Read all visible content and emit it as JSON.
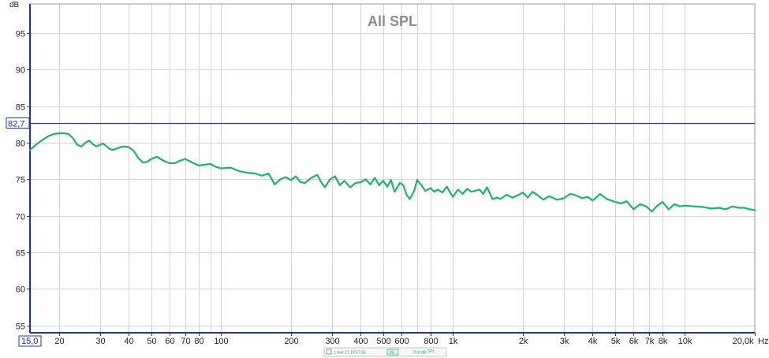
{
  "chart_data": {
    "type": "line",
    "title": "All SPL",
    "ylabel": "dB",
    "x_unit": "Hz",
    "x_scale": "log",
    "xlim": [
      15.0,
      20000
    ],
    "ylim": [
      54,
      99
    ],
    "grid": true,
    "yticks": [
      {
        "value": 55,
        "label": "55"
      },
      {
        "value": 60,
        "label": "60"
      },
      {
        "value": 65,
        "label": "65"
      },
      {
        "value": 70,
        "label": "70"
      },
      {
        "value": 75,
        "label": "75"
      },
      {
        "value": 80,
        "label": "80"
      },
      {
        "value": 85,
        "label": "85"
      },
      {
        "value": 90,
        "label": "90"
      },
      {
        "value": 95,
        "label": "95"
      }
    ],
    "xticks": [
      {
        "value": 20,
        "label": "20"
      },
      {
        "value": 30,
        "label": "30"
      },
      {
        "value": 40,
        "label": "40"
      },
      {
        "value": 50,
        "label": "50"
      },
      {
        "value": 60,
        "label": "60"
      },
      {
        "value": 70,
        "label": "70"
      },
      {
        "value": 80,
        "label": "80"
      },
      {
        "value": 100,
        "label": "100"
      },
      {
        "value": 200,
        "label": "200"
      },
      {
        "value": 300,
        "label": "300"
      },
      {
        "value": 400,
        "label": "400"
      },
      {
        "value": 500,
        "label": "500"
      },
      {
        "value": 600,
        "label": "600"
      },
      {
        "value": 800,
        "label": "800"
      },
      {
        "value": 1000,
        "label": "1k"
      },
      {
        "value": 2000,
        "label": "2k"
      },
      {
        "value": 3000,
        "label": "3k"
      },
      {
        "value": 4000,
        "label": "4k"
      },
      {
        "value": 5000,
        "label": "5k"
      },
      {
        "value": 6000,
        "label": "6k"
      },
      {
        "value": 7000,
        "label": "7k"
      },
      {
        "value": 8000,
        "label": "8k"
      },
      {
        "value": 10000,
        "label": "10k"
      },
      {
        "value": 20000,
        "label": "20,0k"
      }
    ],
    "x_minor_grid": [
      90,
      700
    ],
    "x_start_label": "15,0",
    "cursor": {
      "value": 82.7,
      "label": "82,7"
    },
    "series": [
      {
        "color": "#1fb36a",
        "points": [
          [
            15,
            79.0
          ],
          [
            16,
            79.8
          ],
          [
            17,
            80.4
          ],
          [
            18,
            80.9
          ],
          [
            19,
            81.2
          ],
          [
            20,
            81.3
          ],
          [
            21,
            81.3
          ],
          [
            22,
            81.2
          ],
          [
            23,
            80.6
          ],
          [
            24,
            79.7
          ],
          [
            25,
            79.5
          ],
          [
            26,
            80.0
          ],
          [
            27,
            80.3
          ],
          [
            28,
            79.8
          ],
          [
            29,
            79.5
          ],
          [
            31,
            79.9
          ],
          [
            33,
            79.2
          ],
          [
            34,
            79.0
          ],
          [
            36,
            79.3
          ],
          [
            38,
            79.5
          ],
          [
            40,
            79.4
          ],
          [
            42,
            78.9
          ],
          [
            44,
            77.9
          ],
          [
            46,
            77.3
          ],
          [
            48,
            77.4
          ],
          [
            50,
            77.8
          ],
          [
            53,
            78.1
          ],
          [
            56,
            77.6
          ],
          [
            60,
            77.2
          ],
          [
            63,
            77.2
          ],
          [
            66,
            77.5
          ],
          [
            70,
            77.8
          ],
          [
            75,
            77.3
          ],
          [
            80,
            76.9
          ],
          [
            85,
            77.0
          ],
          [
            90,
            77.1
          ],
          [
            95,
            76.7
          ],
          [
            100,
            76.5
          ],
          [
            110,
            76.6
          ],
          [
            120,
            76.1
          ],
          [
            130,
            75.9
          ],
          [
            140,
            75.8
          ],
          [
            150,
            75.5
          ],
          [
            160,
            75.8
          ],
          [
            165,
            75.1
          ],
          [
            170,
            74.3
          ],
          [
            180,
            75.0
          ],
          [
            190,
            75.3
          ],
          [
            200,
            74.9
          ],
          [
            210,
            75.4
          ],
          [
            220,
            74.6
          ],
          [
            230,
            74.5
          ],
          [
            245,
            75.2
          ],
          [
            260,
            75.6
          ],
          [
            270,
            74.6
          ],
          [
            280,
            73.9
          ],
          [
            295,
            75.0
          ],
          [
            310,
            75.4
          ],
          [
            325,
            74.2
          ],
          [
            340,
            74.8
          ],
          [
            360,
            73.9
          ],
          [
            380,
            74.5
          ],
          [
            400,
            74.6
          ],
          [
            420,
            75.0
          ],
          [
            440,
            74.3
          ],
          [
            460,
            75.2
          ],
          [
            480,
            74.2
          ],
          [
            500,
            74.8
          ],
          [
            520,
            74.0
          ],
          [
            540,
            74.9
          ],
          [
            560,
            73.3
          ],
          [
            590,
            74.5
          ],
          [
            610,
            74.2
          ],
          [
            630,
            72.9
          ],
          [
            650,
            72.3
          ],
          [
            680,
            73.4
          ],
          [
            700,
            74.9
          ],
          [
            730,
            74.2
          ],
          [
            760,
            73.4
          ],
          [
            800,
            73.8
          ],
          [
            830,
            73.3
          ],
          [
            860,
            73.6
          ],
          [
            900,
            73.2
          ],
          [
            940,
            74.0
          ],
          [
            980,
            73.0
          ],
          [
            1000,
            72.6
          ],
          [
            1050,
            73.6
          ],
          [
            1100,
            73.0
          ],
          [
            1150,
            73.7
          ],
          [
            1200,
            73.3
          ],
          [
            1300,
            73.6
          ],
          [
            1350,
            73.0
          ],
          [
            1400,
            73.9
          ],
          [
            1480,
            72.3
          ],
          [
            1550,
            72.5
          ],
          [
            1600,
            72.3
          ],
          [
            1700,
            72.9
          ],
          [
            1800,
            72.5
          ],
          [
            1900,
            72.8
          ],
          [
            2000,
            73.2
          ],
          [
            2100,
            72.5
          ],
          [
            2200,
            73.3
          ],
          [
            2300,
            72.9
          ],
          [
            2450,
            72.2
          ],
          [
            2600,
            72.7
          ],
          [
            2800,
            72.2
          ],
          [
            3000,
            72.4
          ],
          [
            3200,
            73.0
          ],
          [
            3400,
            72.8
          ],
          [
            3600,
            72.4
          ],
          [
            3800,
            72.6
          ],
          [
            4000,
            72.1
          ],
          [
            4300,
            73.0
          ],
          [
            4600,
            72.3
          ],
          [
            5000,
            71.9
          ],
          [
            5300,
            71.7
          ],
          [
            5600,
            72.0
          ],
          [
            6000,
            70.9
          ],
          [
            6400,
            71.6
          ],
          [
            6800,
            71.3
          ],
          [
            7200,
            70.6
          ],
          [
            7600,
            71.4
          ],
          [
            8000,
            71.9
          ],
          [
            8500,
            70.9
          ],
          [
            9000,
            71.6
          ],
          [
            9500,
            71.3
          ],
          [
            10000,
            71.4
          ],
          [
            11000,
            71.3
          ],
          [
            12000,
            71.2
          ],
          [
            13000,
            71.0
          ],
          [
            14000,
            71.1
          ],
          [
            15000,
            70.9
          ],
          [
            16000,
            71.3
          ],
          [
            17000,
            71.1
          ],
          [
            18000,
            71.1
          ],
          [
            19000,
            70.9
          ],
          [
            20000,
            70.8
          ]
        ]
      }
    ],
    "legend": {
      "name": "1 mar 21 19:57:06",
      "smoothing": "1/6",
      "value": "79,0 dB",
      "value_unit": "SPL"
    }
  }
}
